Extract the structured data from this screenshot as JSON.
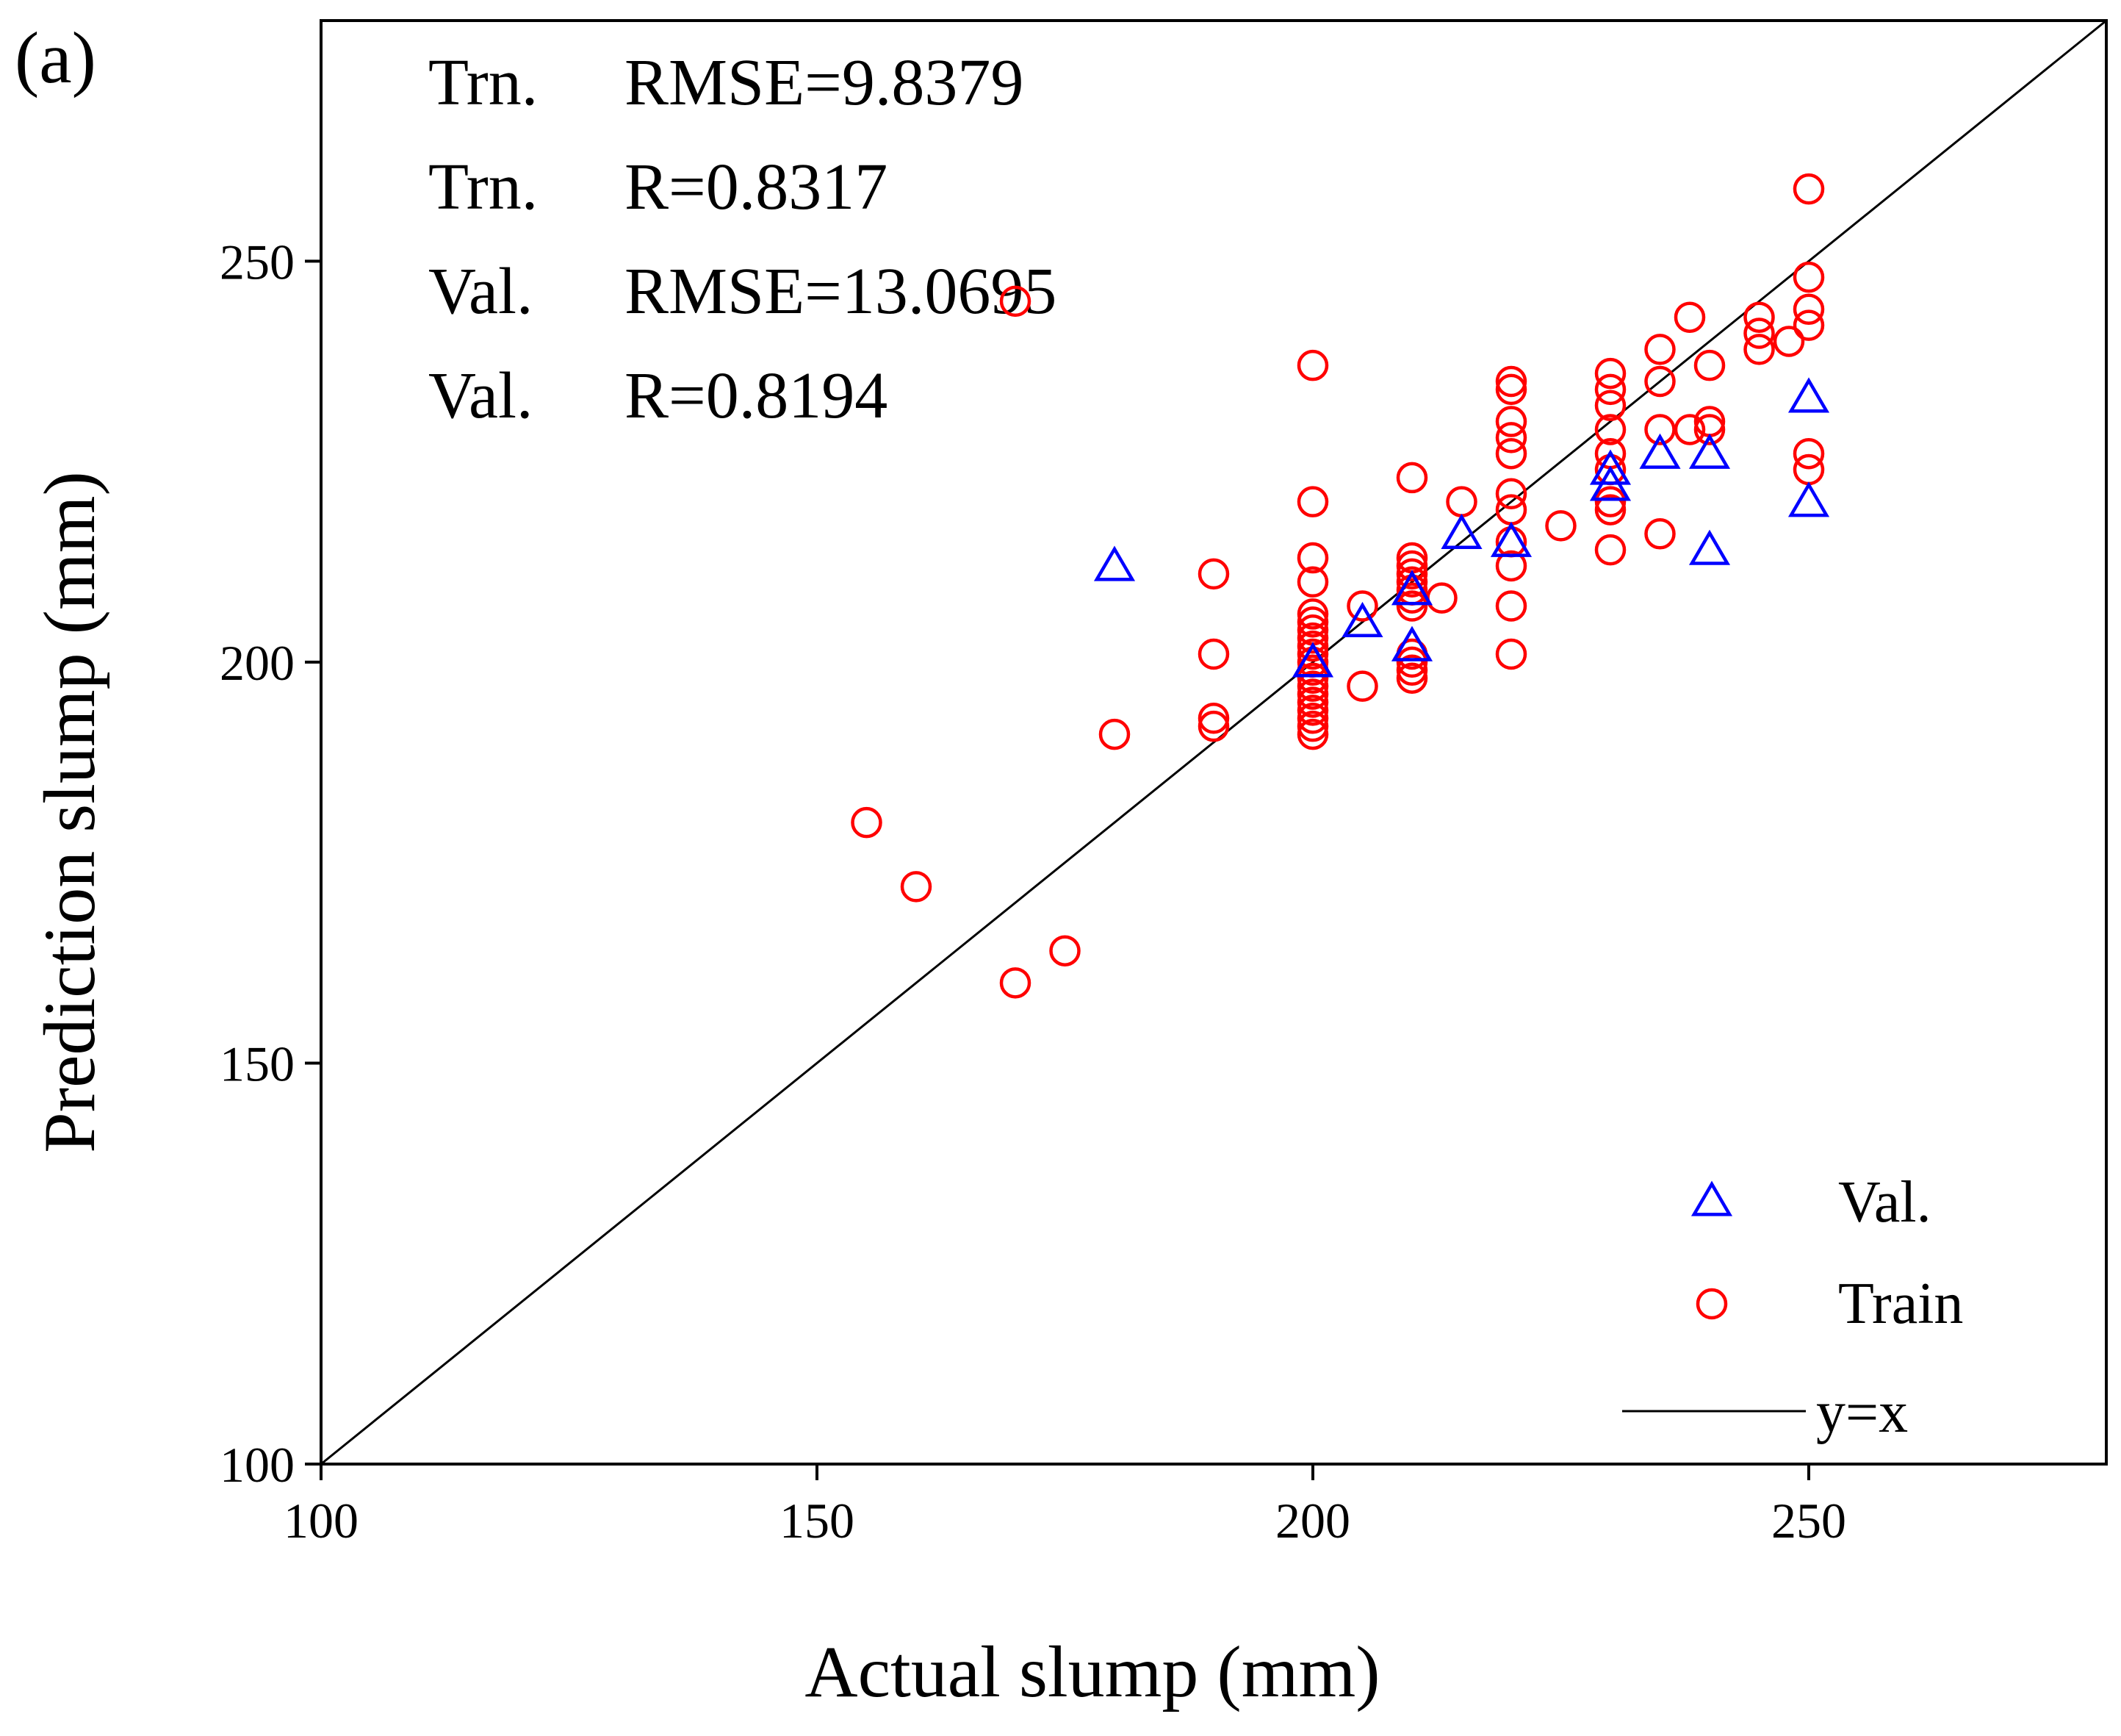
{
  "chart_data": {
    "type": "scatter",
    "panel_label": "(a)",
    "xlabel": "Actual slump (mm)",
    "ylabel": "Prediction slump (mm)",
    "xlim": [
      100,
      280
    ],
    "ylim": [
      100,
      280
    ],
    "xticks": [
      100,
      150,
      200,
      250
    ],
    "yticks": [
      100,
      150,
      200,
      250
    ],
    "xtick_labels": [
      "100",
      "150",
      "200",
      "250"
    ],
    "ytick_labels": [
      "100",
      "150",
      "200",
      "250"
    ],
    "grid": false,
    "stats": [
      {
        "set": "Trn.",
        "metric": "RMSE=9.8379"
      },
      {
        "set": "Trn.",
        "metric": "R=0.8317"
      },
      {
        "set": "Val.",
        "metric": "RMSE=13.0695"
      },
      {
        "set": "Val.",
        "metric": "R=0.8194"
      }
    ],
    "legend": {
      "position": "bottom-right",
      "entries": [
        {
          "label": "Val.",
          "marker": "triangle",
          "color": "#0000ff"
        },
        {
          "label": "Train",
          "marker": "circle",
          "color": "#ff0000"
        },
        {
          "label": "y=x",
          "marker": "line",
          "color": "#000000"
        }
      ]
    },
    "series": [
      {
        "name": "Train",
        "marker": "circle",
        "color": "#ff0000",
        "points": [
          [
            155,
            180
          ],
          [
            160,
            172
          ],
          [
            170,
            160
          ],
          [
            175,
            164
          ],
          [
            170,
            245
          ],
          [
            180,
            191
          ],
          [
            190,
            211
          ],
          [
            190,
            201
          ],
          [
            190,
            193
          ],
          [
            190,
            192
          ],
          [
            200,
            237
          ],
          [
            200,
            220
          ],
          [
            200,
            213
          ],
          [
            200,
            210
          ],
          [
            200,
            206
          ],
          [
            200,
            205
          ],
          [
            200,
            204
          ],
          [
            200,
            203
          ],
          [
            200,
            202
          ],
          [
            200,
            201
          ],
          [
            200,
            200
          ],
          [
            200,
            199
          ],
          [
            200,
            198
          ],
          [
            200,
            197
          ],
          [
            200,
            196
          ],
          [
            200,
            195
          ],
          [
            200,
            194
          ],
          [
            200,
            193
          ],
          [
            200,
            192
          ],
          [
            200,
            191
          ],
          [
            205,
            207
          ],
          [
            205,
            197
          ],
          [
            210,
            223
          ],
          [
            210,
            213
          ],
          [
            210,
            212
          ],
          [
            210,
            211
          ],
          [
            210,
            210
          ],
          [
            210,
            209
          ],
          [
            210,
            208
          ],
          [
            210,
            207
          ],
          [
            210,
            201
          ],
          [
            210,
            200
          ],
          [
            210,
            199
          ],
          [
            210,
            198
          ],
          [
            213,
            208
          ],
          [
            215,
            220
          ],
          [
            220,
            235
          ],
          [
            220,
            234
          ],
          [
            220,
            230
          ],
          [
            220,
            228
          ],
          [
            220,
            226
          ],
          [
            220,
            221
          ],
          [
            220,
            219
          ],
          [
            220,
            215
          ],
          [
            220,
            212
          ],
          [
            220,
            207
          ],
          [
            220,
            201
          ],
          [
            225,
            217
          ],
          [
            230,
            236
          ],
          [
            230,
            234
          ],
          [
            230,
            232
          ],
          [
            230,
            229
          ],
          [
            230,
            226
          ],
          [
            230,
            224
          ],
          [
            230,
            220
          ],
          [
            230,
            219
          ],
          [
            230,
            214
          ],
          [
            235,
            239
          ],
          [
            235,
            235
          ],
          [
            235,
            229
          ],
          [
            235,
            216
          ],
          [
            238,
            243
          ],
          [
            238,
            229
          ],
          [
            240,
            237
          ],
          [
            240,
            230
          ],
          [
            240,
            229
          ],
          [
            245,
            243
          ],
          [
            245,
            241
          ],
          [
            245,
            239
          ],
          [
            248,
            240
          ],
          [
            250,
            259
          ],
          [
            250,
            248
          ],
          [
            250,
            244
          ],
          [
            250,
            242
          ],
          [
            250,
            226
          ],
          [
            250,
            224
          ]
        ]
      },
      {
        "name": "Val.",
        "marker": "triangle",
        "color": "#0000ff",
        "points": [
          [
            180,
            212
          ],
          [
            200,
            200
          ],
          [
            205,
            205
          ],
          [
            210,
            202
          ],
          [
            210,
            209
          ],
          [
            215,
            216
          ],
          [
            220,
            215
          ],
          [
            230,
            224
          ],
          [
            230,
            222
          ],
          [
            235,
            226
          ],
          [
            240,
            226
          ],
          [
            240,
            214
          ],
          [
            250,
            233
          ],
          [
            250,
            220
          ]
        ]
      }
    ],
    "reference_line": {
      "label": "y=x",
      "from": [
        100,
        100
      ],
      "to": [
        280,
        280
      ],
      "color": "#000000"
    }
  }
}
